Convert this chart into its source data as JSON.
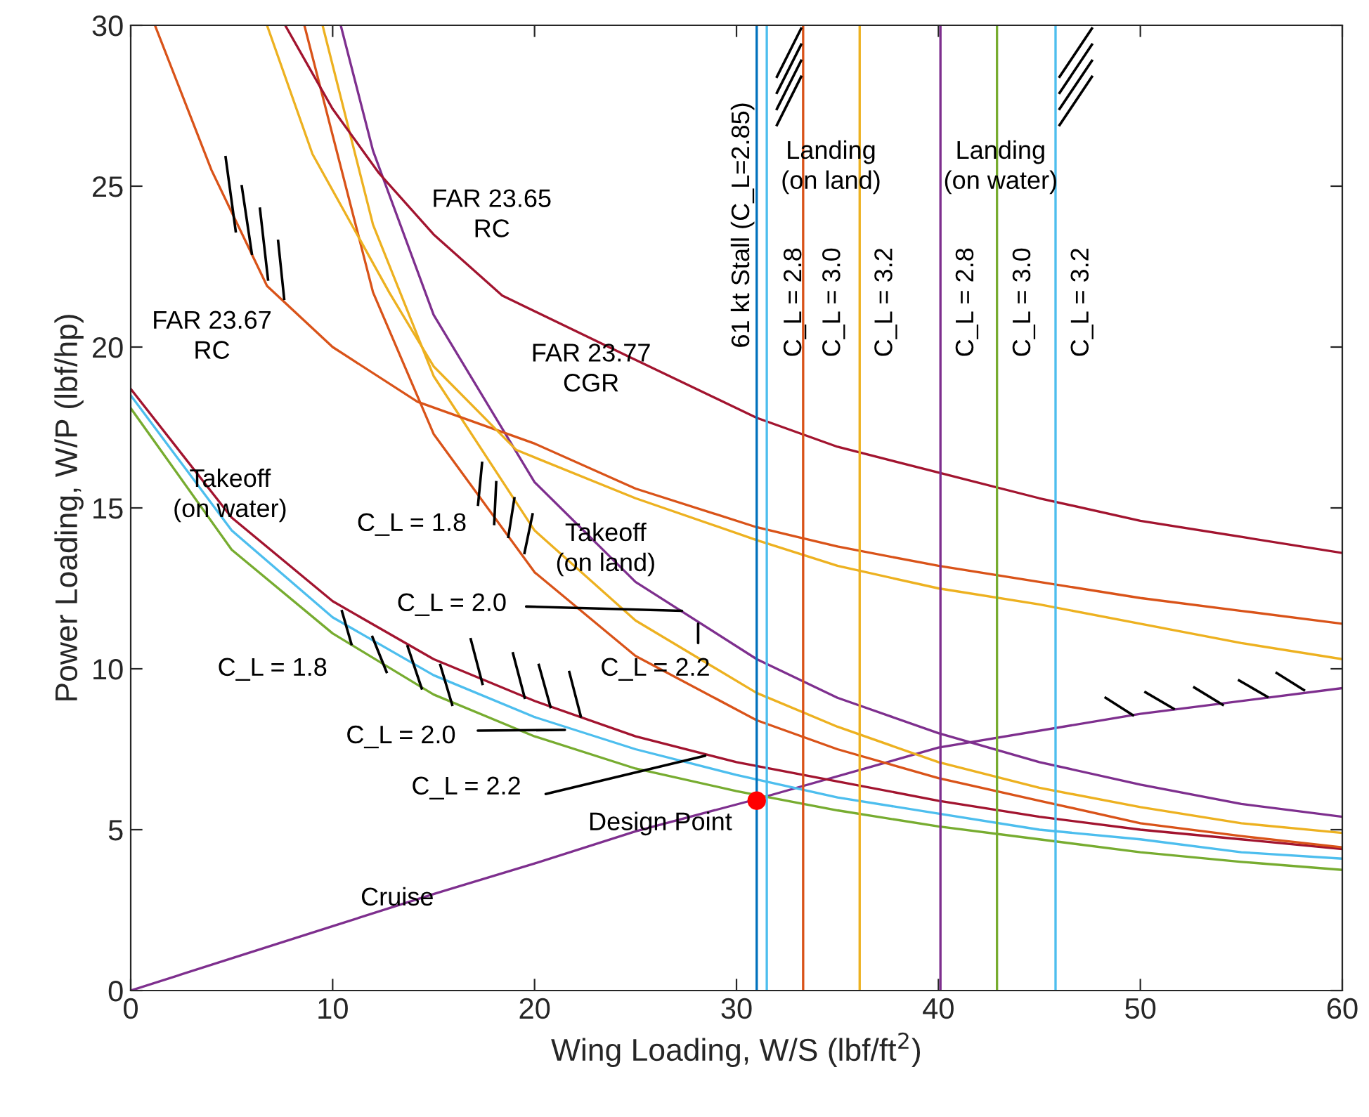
{
  "chart_data": {
    "type": "line",
    "xlabel": "Wing Loading, W/S (lbf/ft$^{2}$)",
    "ylabel": "Power Loading, W/P (lbf/hp)",
    "xlim": [
      0,
      60
    ],
    "ylim": [
      0,
      30
    ],
    "xticks": [
      0,
      10,
      20,
      30,
      40,
      50,
      60
    ],
    "yticks": [
      0,
      5,
      10,
      15,
      20,
      25,
      30
    ],
    "grid": false,
    "legend": false,
    "marker": "none",
    "line_style": "solid",
    "series": [
      {
        "color": "#7e2f8e",
        "x": [
          0,
          5,
          10,
          15,
          20,
          25,
          31,
          40,
          50,
          60
        ],
        "values": [
          0,
          1.0,
          2.0,
          3.0,
          3.95,
          4.95,
          5.95,
          7.55,
          8.6,
          9.4
        ]
      },
      {
        "color": "#a2142f",
        "x": [
          0,
          5,
          10,
          15,
          20,
          25,
          30,
          35,
          40,
          45,
          50,
          55,
          60
        ],
        "values": [
          18.7,
          14.7,
          12.1,
          10.3,
          9.0,
          7.9,
          7.1,
          6.5,
          5.9,
          5.4,
          5.0,
          4.7,
          4.4
        ]
      },
      {
        "color": "#4dbeee",
        "x": [
          0,
          5,
          10,
          15,
          20,
          25,
          30,
          35,
          40,
          45,
          50,
          55,
          60
        ],
        "values": [
          18.5,
          14.3,
          11.6,
          9.8,
          8.5,
          7.5,
          6.7,
          6.0,
          5.5,
          5.0,
          4.7,
          4.3,
          4.1
        ]
      },
      {
        "color": "#77ac30",
        "x": [
          0,
          5,
          10,
          15,
          20,
          25,
          30,
          35,
          40,
          45,
          50,
          55,
          60
        ],
        "values": [
          18.1,
          13.7,
          11.1,
          9.2,
          7.9,
          6.9,
          6.2,
          5.6,
          5.1,
          4.7,
          4.3,
          4.0,
          3.75
        ]
      },
      {
        "color": "#7e2f8e",
        "x": [
          10.4,
          12,
          15,
          20,
          25,
          31,
          35,
          40,
          45,
          50,
          55,
          60
        ],
        "values": [
          30,
          26.1,
          21.0,
          15.8,
          12.7,
          10.3,
          9.1,
          8.0,
          7.1,
          6.4,
          5.8,
          5.4
        ]
      },
      {
        "color": "#edb120",
        "x": [
          9.5,
          12,
          15,
          20,
          25,
          31,
          35,
          40,
          45,
          50,
          55,
          60
        ],
        "values": [
          30,
          23.8,
          19.1,
          14.3,
          11.5,
          9.25,
          8.2,
          7.1,
          6.3,
          5.7,
          5.2,
          4.9
        ]
      },
      {
        "color": "#d95319",
        "x": [
          8.6,
          12,
          15,
          20,
          25,
          31,
          35,
          40,
          45,
          50,
          55,
          60
        ],
        "values": [
          30,
          21.7,
          17.3,
          13.0,
          10.4,
          8.4,
          7.5,
          6.6,
          5.9,
          5.2,
          4.8,
          4.45
        ]
      },
      {
        "color": "#a2142f",
        "x": [
          7.65,
          10,
          12.3,
          15,
          18.4,
          25,
          31,
          35,
          40,
          45,
          50,
          55,
          60
        ],
        "values": [
          30,
          27.4,
          25.4,
          23.5,
          21.6,
          19.6,
          17.8,
          16.9,
          16.1,
          15.3,
          14.6,
          14.1,
          13.6
        ]
      },
      {
        "color": "#d95319",
        "x": [
          1.2,
          4,
          6.75,
          10,
          14.2,
          20,
          25,
          31,
          35,
          40,
          45,
          50,
          55,
          60
        ],
        "values": [
          30,
          25.5,
          21.9,
          20.0,
          18.3,
          17.0,
          15.6,
          14.4,
          13.8,
          13.2,
          12.7,
          12.2,
          11.8,
          11.4
        ]
      },
      {
        "color": "#edb120",
        "x": [
          6.75,
          9,
          12.8,
          15,
          19.1,
          25,
          31,
          35,
          40,
          45,
          50,
          55,
          60
        ],
        "values": [
          30,
          26.0,
          21.7,
          19.4,
          16.8,
          15.3,
          14.0,
          13.2,
          12.5,
          12.0,
          11.4,
          10.8,
          10.3
        ]
      },
      {
        "type": "scatter",
        "color": "#ff0000",
        "marker": "circle",
        "x": [
          31
        ],
        "values": [
          5.9
        ]
      }
    ],
    "ref_lines": [
      {
        "axis": "x",
        "value": 31.0,
        "color": "#0072bd"
      },
      {
        "axis": "x",
        "value": 31.5,
        "color": "#4dbeee"
      },
      {
        "axis": "x",
        "value": 33.3,
        "color": "#d95319"
      },
      {
        "axis": "x",
        "value": 36.1,
        "color": "#edb120"
      },
      {
        "axis": "x",
        "value": 40.1,
        "color": "#7e2f8e"
      },
      {
        "axis": "x",
        "value": 42.9,
        "color": "#77ac30"
      },
      {
        "axis": "x",
        "value": 45.8,
        "color": "#4dbeee"
      }
    ],
    "annotations": [
      "FAR 23.65\nRC",
      "FAR 23.67\nRC",
      "FAR 23.77\nCGR",
      "Takeoff\n(on water)",
      "Takeoff\n(on land)",
      "C_L = 1.8",
      {
        "text": "C_L = 2.0",
        "x": 27.3,
        "y": 11.8
      },
      {
        "text": "C_L = 2.2",
        "x": 28.1,
        "y": 11.4
      },
      "C_L = 1.8",
      {
        "text": "C_L = 2.0",
        "x": 21.5,
        "y": 8.1
      },
      {
        "text": "C_L = 2.2",
        "x": 28.45,
        "y": 7.3
      },
      "Design Point",
      "Cruise",
      "Landing\n(on land)",
      "Landing\n(on water)",
      "61 kt Stall (C_L=2.85)",
      "C_L = 2.8",
      "C_L = 3.0",
      "C_L = 3.2",
      "C_L = 2.8",
      "C_L = 3.0",
      "C_L = 3.2"
    ]
  }
}
